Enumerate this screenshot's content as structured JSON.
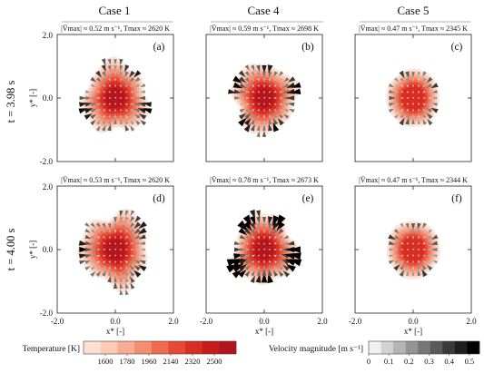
{
  "chart_data": {
    "type": "heatmap",
    "description_layout": "3 columns x 2 rows of temperature contour fields with velocity arrows",
    "columns": [
      "Case 1",
      "Case 4",
      "Case 5"
    ],
    "rows": [
      "t = 3.98 s",
      "t = 4.00 s"
    ],
    "xlabel": "x* [-]",
    "ylabel": "y* [-]",
    "xlim": [
      -2.0,
      2.0
    ],
    "ylim": [
      -2.0,
      2.0
    ],
    "xticks": [
      "-2.0",
      "0.0",
      "2.0"
    ],
    "yticks": [
      "2.0",
      "0.0",
      "-2.0"
    ],
    "panels": [
      {
        "id": "a",
        "label": "(a)",
        "case": "Case 1",
        "time": "t = 3.98 s",
        "stats": "|V̄max| ≈ 0.52 m s⁻¹, Tmax ≈ 2620 K",
        "vmax": 0.52,
        "tmax": 2620,
        "radius": 1.12,
        "roughness": 0.18,
        "seed": 3
      },
      {
        "id": "b",
        "label": "(b)",
        "case": "Case 4",
        "time": "t = 3.98 s",
        "stats": "|V̄max| ≈ 0.59 m s⁻¹, Tmax ≈ 2698 K",
        "vmax": 0.59,
        "tmax": 2698,
        "radius": 1.1,
        "roughness": 0.16,
        "seed": 7
      },
      {
        "id": "c",
        "label": "(c)",
        "case": "Case 5",
        "time": "t = 3.98 s",
        "stats": "|V̄max| ≈ 0.47 m s⁻¹, Tmax ≈ 2345 K",
        "vmax": 0.47,
        "tmax": 2345,
        "radius": 0.92,
        "roughness": 0.04,
        "seed": 11
      },
      {
        "id": "d",
        "label": "(d)",
        "case": "Case 1",
        "time": "t = 4.00 s",
        "stats": "|V̄max| ≈ 0.53 m s⁻¹, Tmax ≈ 2620 K",
        "vmax": 0.53,
        "tmax": 2620,
        "radius": 1.18,
        "roughness": 0.2,
        "seed": 5
      },
      {
        "id": "e",
        "label": "(e)",
        "case": "Case 4",
        "time": "t = 4.00 s",
        "stats": "|V̄max| ≈ 0.78 m s⁻¹, Tmax ≈ 2673 K",
        "vmax": 0.78,
        "tmax": 2673,
        "radius": 1.12,
        "roughness": 0.18,
        "seed": 9
      },
      {
        "id": "f",
        "label": "(f)",
        "case": "Case 5",
        "time": "t = 4.00 s",
        "stats": "|V̄max| ≈ 0.47 m s⁻¹, Tmax ≈ 2344 K",
        "vmax": 0.47,
        "tmax": 2344,
        "radius": 0.92,
        "roughness": 0.04,
        "seed": 13
      }
    ],
    "temperature_colorbar": {
      "title": "Temperature [K]",
      "range": [
        1420,
        2680
      ],
      "ticks": [
        "1600",
        "1780",
        "1960",
        "2140",
        "2320",
        "2500"
      ],
      "colors": [
        "#fde0d2",
        "#fbcbb6",
        "#f8ad93",
        "#f48e72",
        "#ef6c52",
        "#e64a35",
        "#d92e24",
        "#c81b1c",
        "#b3151c"
      ]
    },
    "velocity_colorbar": {
      "title": "Velocity magnitude [m s⁻¹]",
      "range": [
        0,
        0.55
      ],
      "ticks": [
        "0",
        "0.1",
        "0.2",
        "0.3",
        "0.4",
        "0.5"
      ],
      "colors": [
        "#f0f0f0",
        "#d2d2d2",
        "#b4b4b4",
        "#959595",
        "#777777",
        "#595959",
        "#3a3a3a",
        "#1e1e1e",
        "#000000"
      ]
    }
  }
}
